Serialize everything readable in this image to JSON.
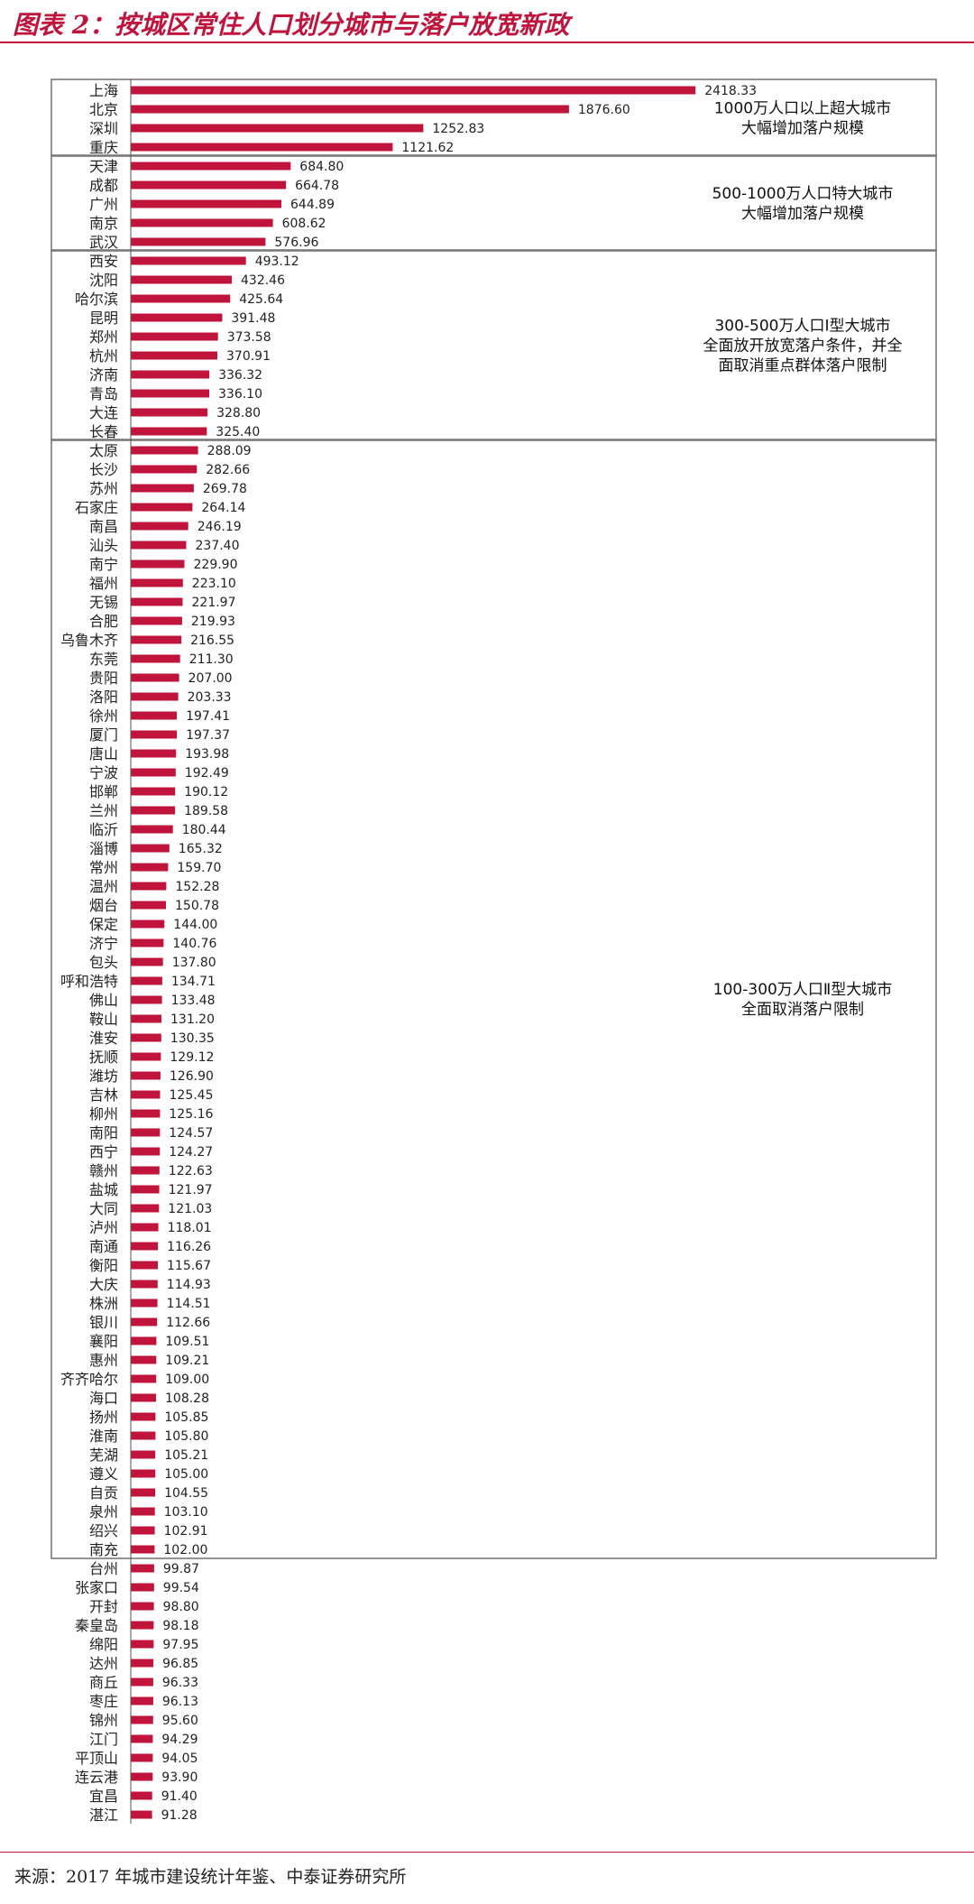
{
  "title": "图表 2：按城区常住人口划分城市与落户放宽新政",
  "source": "来源：2017 年城市建设统计年鉴、中泰证券研究所",
  "colors": {
    "bar": "#c0143c",
    "accent": "#c0143c",
    "box": "#7a7a7a"
  },
  "chart_data": {
    "type": "bar",
    "orientation": "horizontal",
    "categories": [
      "上海",
      "北京",
      "深圳",
      "重庆",
      "天津",
      "成都",
      "广州",
      "南京",
      "武汉",
      "西安",
      "沈阳",
      "哈尔滨",
      "昆明",
      "郑州",
      "杭州",
      "济南",
      "青岛",
      "大连",
      "长春",
      "太原",
      "长沙",
      "苏州",
      "石家庄",
      "南昌",
      "汕头",
      "南宁",
      "福州",
      "无锡",
      "合肥",
      "乌鲁木齐",
      "东莞",
      "贵阳",
      "洛阳",
      "徐州",
      "厦门",
      "唐山",
      "宁波",
      "邯郸",
      "兰州",
      "临沂",
      "淄博",
      "常州",
      "温州",
      "烟台",
      "保定",
      "济宁",
      "包头",
      "呼和浩特",
      "佛山",
      "鞍山",
      "淮安",
      "抚顺",
      "潍坊",
      "吉林",
      "柳州",
      "南阳",
      "西宁",
      "赣州",
      "盐城",
      "大同",
      "泸州",
      "南通",
      "衡阳",
      "大庆",
      "株洲",
      "银川",
      "襄阳",
      "惠州",
      "齐齐哈尔",
      "海口",
      "扬州",
      "淮南",
      "芜湖",
      "遵义",
      "自贡",
      "泉州",
      "绍兴",
      "南充",
      "台州",
      "张家口",
      "开封",
      "秦皇岛",
      "绵阳",
      "达州",
      "商丘",
      "枣庄",
      "锦州",
      "江门",
      "平顶山",
      "连云港",
      "宜昌",
      "湛江"
    ],
    "values": [
      2418.33,
      1876.6,
      1252.83,
      1121.62,
      684.8,
      664.78,
      644.89,
      608.62,
      576.96,
      493.12,
      432.46,
      425.64,
      391.48,
      373.58,
      370.91,
      336.32,
      336.1,
      328.8,
      325.4,
      288.09,
      282.66,
      269.78,
      264.14,
      246.19,
      237.4,
      229.9,
      223.1,
      221.97,
      219.93,
      216.55,
      211.3,
      207.0,
      203.33,
      197.41,
      197.37,
      193.98,
      192.49,
      190.12,
      189.58,
      180.44,
      165.32,
      159.7,
      152.28,
      150.78,
      144.0,
      140.76,
      137.8,
      134.71,
      133.48,
      131.2,
      130.35,
      129.12,
      126.9,
      125.45,
      125.16,
      124.57,
      124.27,
      122.63,
      121.97,
      121.03,
      118.01,
      116.26,
      115.67,
      114.93,
      114.51,
      112.66,
      109.51,
      109.21,
      109.0,
      108.28,
      105.85,
      105.8,
      105.21,
      105.0,
      104.55,
      103.1,
      102.91,
      102.0,
      99.87,
      99.54,
      98.8,
      98.18,
      97.95,
      96.85,
      96.33,
      96.13,
      95.6,
      94.29,
      94.05,
      93.9,
      91.4,
      91.28
    ],
    "value_labels": [
      "2418.33",
      "1876.60",
      "1252.83",
      "1121.62",
      "684.80",
      "664.78",
      "644.89",
      "608.62",
      "576.96",
      "493.12",
      "432.46",
      "425.64",
      "391.48",
      "373.58",
      "370.91",
      "336.32",
      "336.10",
      "328.80",
      "325.40",
      "288.09",
      "282.66",
      "269.78",
      "264.14",
      "246.19",
      "237.40",
      "229.90",
      "223.10",
      "221.97",
      "219.93",
      "216.55",
      "211.30",
      "207.00",
      "203.33",
      "197.41",
      "197.37",
      "193.98",
      "192.49",
      "190.12",
      "189.58",
      "180.44",
      "165.32",
      "159.70",
      "152.28",
      "150.78",
      "144.00",
      "140.76",
      "137.80",
      "134.71",
      "133.48",
      "131.20",
      "130.35",
      "129.12",
      "126.90",
      "125.45",
      "125.16",
      "124.57",
      "124.27",
      "122.63",
      "121.97",
      "121.03",
      "118.01",
      "116.26",
      "115.67",
      "114.93",
      "114.51",
      "112.66",
      "109.51",
      "109.21",
      "109.00",
      "108.28",
      "105.85",
      "105.80",
      "105.21",
      "105.00",
      "104.55",
      "103.10",
      "102.91",
      "102.00",
      "99.87",
      "99.54",
      "98.80",
      "98.18",
      "97.95",
      "96.85",
      "96.33",
      "96.13",
      "95.60",
      "94.29",
      "94.05",
      "93.90",
      "91.40",
      "91.28"
    ],
    "xlim": [
      0,
      2800
    ],
    "groups": [
      {
        "start": 0,
        "end": 3,
        "lines": [
          "1000万人口以上超大城市",
          "大幅增加落户规模"
        ]
      },
      {
        "start": 4,
        "end": 8,
        "lines": [
          "500-1000万人口特大城市",
          "大幅增加落户规模"
        ]
      },
      {
        "start": 9,
        "end": 18,
        "lines": [
          "300-500万人口Ⅰ型大城市",
          "全面放开放宽落户条件，并全",
          "面取消重点群体落户限制"
        ]
      },
      {
        "start": 19,
        "end": 77,
        "lines": [
          "100-300万人口Ⅱ型大城市",
          "全面取消落户限制"
        ]
      }
    ]
  }
}
